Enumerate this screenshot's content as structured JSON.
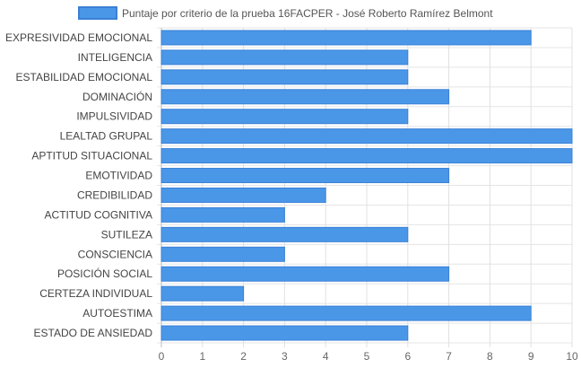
{
  "chart_data": {
    "type": "bar",
    "orientation": "horizontal",
    "legend_position": "top",
    "grid": true,
    "series": [
      {
        "name": "Puntaje por criterio de la prueba 16FACPER - José Roberto Ramírez Belmont",
        "color": "#4a97e8",
        "border_color": "#3b80d6",
        "values": [
          9,
          6,
          6,
          7,
          6,
          10,
          10,
          7,
          4,
          3,
          6,
          3,
          7,
          2,
          9,
          6
        ]
      }
    ],
    "categories": [
      "EXPRESIVIDAD EMOCIONAL",
      "INTELIGENCIA",
      "ESTABILIDAD EMOCIONAL",
      "DOMINACIÓN",
      "IMPULSIVIDAD",
      "LEALTAD GRUPAL",
      "APTITUD SITUACIONAL",
      "EMOTIVIDAD",
      "CREDIBILIDAD",
      "ACTITUD COGNITIVA",
      "SUTILEZA",
      "CONSCIENCIA",
      "POSICIÓN SOCIAL",
      "CERTEZA INDIVIDUAL",
      "AUTOESTIMA",
      "ESTADO DE ANSIEDAD"
    ],
    "xlim": [
      0,
      10
    ],
    "x_ticks": [
      "0",
      "1",
      "2",
      "3",
      "4",
      "5",
      "6",
      "7",
      "8",
      "9",
      "10"
    ]
  }
}
